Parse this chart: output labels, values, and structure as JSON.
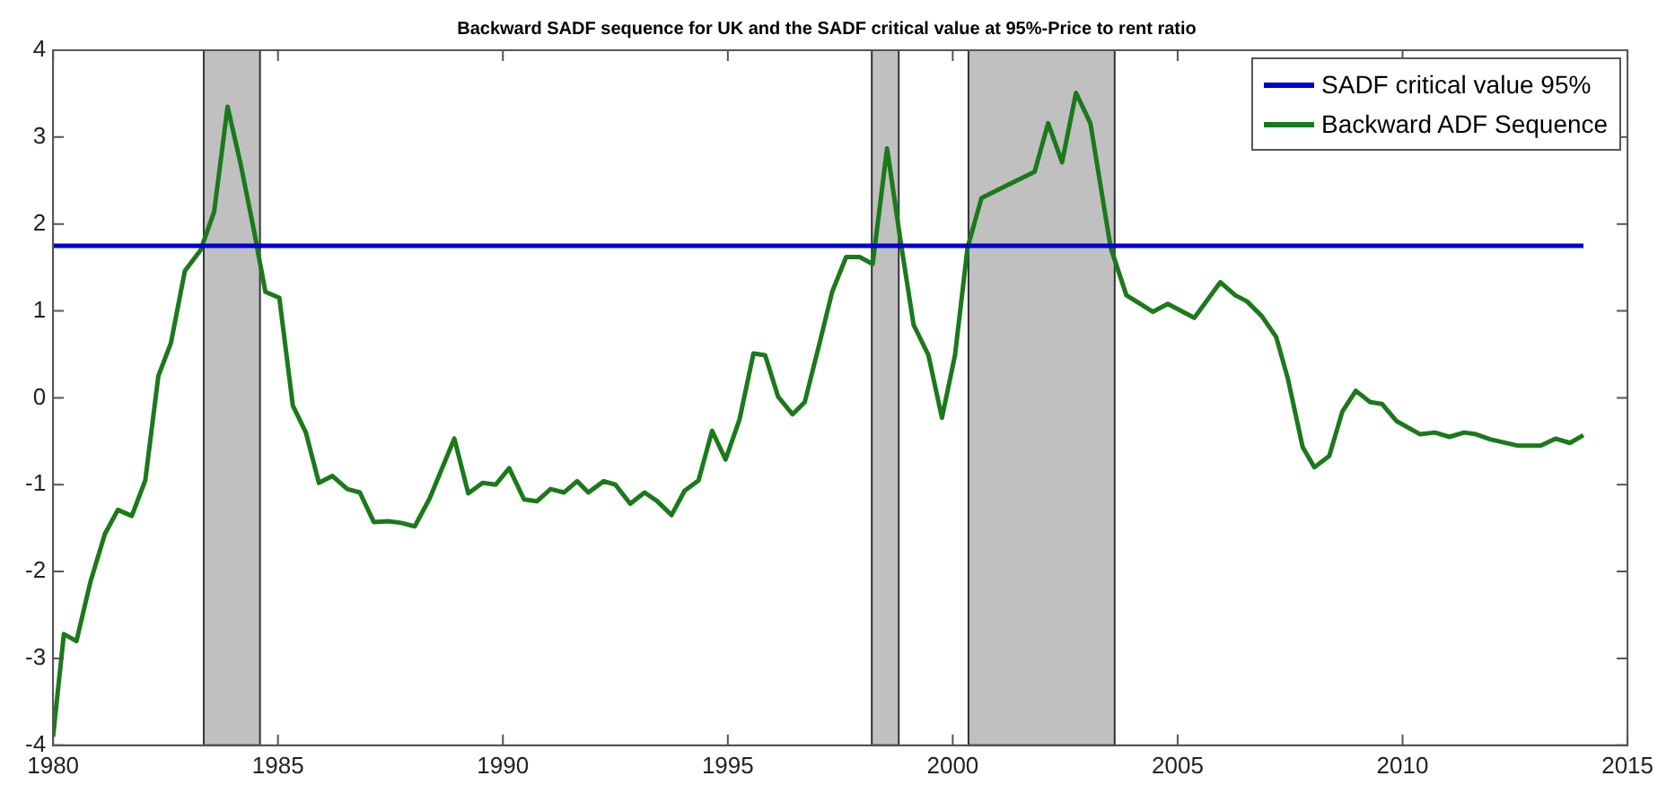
{
  "chart_data": {
    "type": "line",
    "title": "Backward SADF sequence for UK and the SADF critical value at 95%-Price to rent ratio",
    "xlim": [
      1980,
      2015
    ],
    "xticks": [
      1980,
      1985,
      1990,
      1995,
      2000,
      2005,
      2010,
      2015
    ],
    "ylim": [
      -4,
      4
    ],
    "yticks": [
      -4,
      -3,
      -2,
      -1,
      0,
      1,
      2,
      3,
      4
    ],
    "grid": false,
    "legend": "top right",
    "line_style": "solid",
    "marker": "none",
    "bands": [
      {
        "axis": "x",
        "from": 1983.35,
        "to": 1984.6,
        "color": "#c0c0c0"
      },
      {
        "axis": "x",
        "from": 1998.2,
        "to": 1998.8,
        "color": "#c0c0c0"
      },
      {
        "axis": "x",
        "from": 2000.35,
        "to": 2003.6,
        "color": "#c0c0c0"
      }
    ],
    "series": [
      {
        "name": "SADF critical value 95%",
        "color": "#0000cc",
        "x": [
          1980,
          2014.02
        ],
        "values": [
          1.75,
          1.75
        ]
      },
      {
        "name": "Backward ADF Sequence",
        "color": "#1a7a1a",
        "x": [
          1980.0,
          1980.24,
          1980.52,
          1980.83,
          1981.15,
          1981.44,
          1981.75,
          1982.05,
          1982.34,
          1982.62,
          1982.93,
          1983.28,
          1983.58,
          1983.88,
          1984.17,
          1984.46,
          1984.72,
          1985.03,
          1985.33,
          1985.62,
          1985.91,
          1986.21,
          1986.54,
          1986.82,
          1987.13,
          1987.45,
          1987.74,
          1988.04,
          1988.37,
          1988.92,
          1989.23,
          1989.55,
          1989.84,
          1990.14,
          1990.47,
          1990.76,
          1991.06,
          1991.36,
          1991.65,
          1991.9,
          1992.24,
          1992.5,
          1992.83,
          1993.15,
          1993.43,
          1993.75,
          1994.04,
          1994.35,
          1994.65,
          1994.95,
          1995.26,
          1995.57,
          1995.83,
          1996.12,
          1996.44,
          1996.71,
          1997.04,
          1997.32,
          1997.63,
          1997.93,
          1998.22,
          1998.54,
          1998.85,
          1999.13,
          1999.46,
          1999.76,
          2000.05,
          2000.33,
          2000.64,
          2001.23,
          2001.82,
          2002.12,
          2002.43,
          2002.74,
          2003.06,
          2003.51,
          2003.86,
          2004.45,
          2004.78,
          2005.37,
          2005.95,
          2006.28,
          2006.54,
          2006.87,
          2007.19,
          2007.45,
          2007.78,
          2008.04,
          2008.37,
          2008.66,
          2008.96,
          2009.28,
          2009.54,
          2009.87,
          2010.39,
          2010.72,
          2011.04,
          2011.37,
          2011.63,
          2011.96,
          2012.55,
          2013.07,
          2013.4,
          2013.72,
          2014.02
        ],
        "values": [
          -3.9,
          -2.72,
          -2.8,
          -2.12,
          -1.57,
          -1.29,
          -1.36,
          -0.95,
          0.25,
          0.63,
          1.46,
          1.7,
          2.14,
          3.35,
          2.69,
          1.94,
          1.22,
          1.15,
          -0.09,
          -0.4,
          -0.98,
          -0.9,
          -1.05,
          -1.09,
          -1.43,
          -1.42,
          -1.44,
          -1.48,
          -1.16,
          -0.47,
          -1.1,
          -0.98,
          -1.0,
          -0.81,
          -1.17,
          -1.19,
          -1.05,
          -1.09,
          -0.96,
          -1.09,
          -0.96,
          -1.0,
          -1.22,
          -1.09,
          -1.19,
          -1.35,
          -1.07,
          -0.95,
          -0.38,
          -0.71,
          -0.25,
          0.51,
          0.49,
          0.01,
          -0.19,
          -0.05,
          0.63,
          1.22,
          1.62,
          1.62,
          1.54,
          2.87,
          1.77,
          0.84,
          0.49,
          -0.23,
          0.49,
          1.73,
          2.3,
          2.45,
          2.6,
          3.16,
          2.71,
          3.51,
          3.16,
          1.73,
          1.18,
          0.99,
          1.08,
          0.92,
          1.33,
          1.18,
          1.11,
          0.94,
          0.7,
          0.22,
          -0.57,
          -0.8,
          -0.67,
          -0.16,
          0.08,
          -0.05,
          -0.07,
          -0.27,
          -0.42,
          -0.4,
          -0.45,
          -0.4,
          -0.42,
          -0.48,
          -0.55,
          -0.55,
          -0.47,
          -0.52,
          -0.43
        ]
      }
    ]
  }
}
